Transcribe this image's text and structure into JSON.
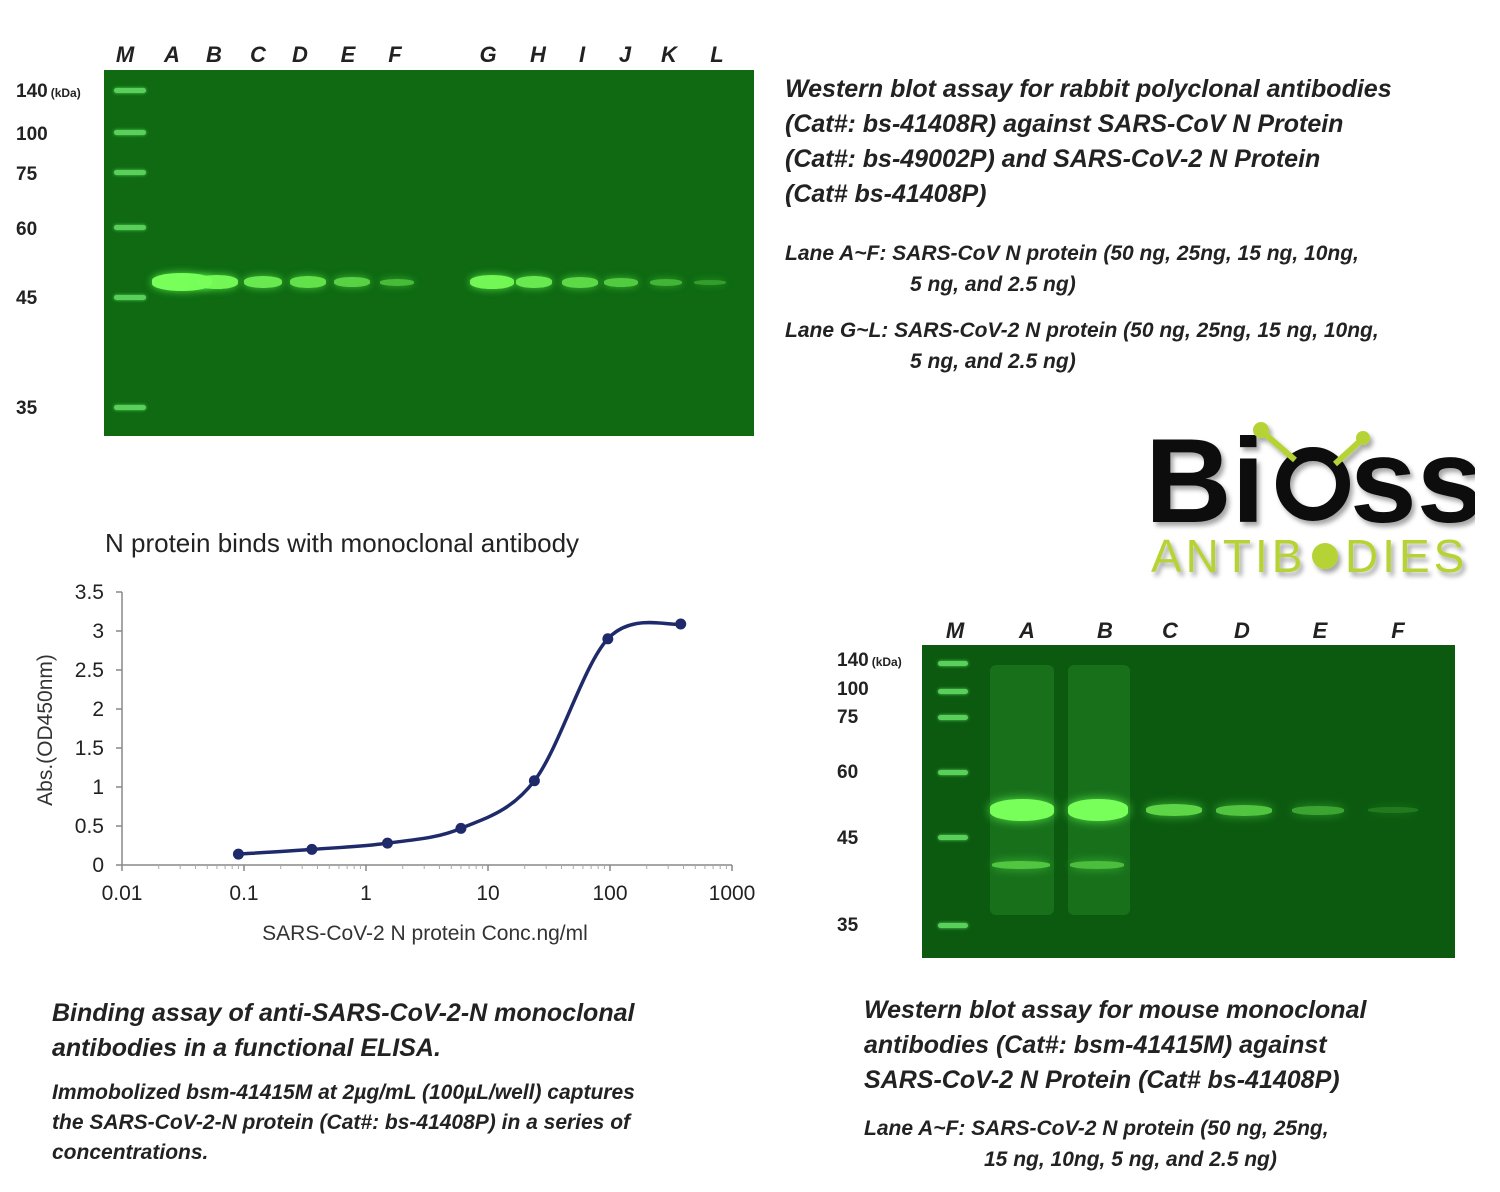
{
  "top_blot": {
    "lanes": [
      "M",
      "A",
      "B",
      "C",
      "D",
      "E",
      "F",
      "G",
      "H",
      "I",
      "J",
      "K",
      "L"
    ],
    "mw_labels": [
      "140",
      "100",
      "75",
      "60",
      "45",
      "35"
    ],
    "mw_unit": "(kDa)",
    "title_lines": [
      "Western blot assay for rabbit polyclonal antibodies",
      "(Cat#: bs-41408R) against SARS-CoV N Protein",
      "(Cat#: bs-49002P) and SARS-CoV-2 N Protein",
      "(Cat# bs-41408P)"
    ],
    "lane_af_line1": "Lane A~F: SARS-CoV N protein (50 ng, 25ng, 15 ng, 10ng,",
    "lane_af_line2": "5 ng, and 2.5 ng)",
    "lane_gl_line1": "Lane G~L: SARS-CoV-2 N protein (50 ng, 25ng, 15 ng, 10ng,",
    "lane_gl_line2": "5 ng, and 2.5 ng)"
  },
  "logo": {
    "text_main": "Bi",
    "text_main2": "ss",
    "text_sub": "ANTIB",
    "text_sub2": "DIES",
    "dark_color": "#111111",
    "accent_color": "#b5d334"
  },
  "bottom_blot": {
    "lanes": [
      "M",
      "A",
      "B",
      "C",
      "D",
      "E",
      "F"
    ],
    "mw_labels": [
      "140",
      "100",
      "75",
      "60",
      "45",
      "35"
    ],
    "mw_unit": "(kDa)",
    "title_lines": [
      "Western blot assay for mouse monoclonal",
      "antibodies (Cat#: bsm-41415M) against",
      "SARS-CoV-2 N Protein (Cat# bs-41408P)"
    ],
    "lane_line1": "Lane A~F: SARS-CoV-2 N protein (50 ng, 25ng,",
    "lane_line2": "15 ng, 10ng, 5 ng, and 2.5 ng)"
  },
  "elisa": {
    "caption_title_lines": [
      "Binding assay of anti-SARS-CoV-2-N monoclonal",
      "antibodies in a functional ELISA."
    ],
    "caption_desc_lines": [
      "Immobolized bsm-41415M at 2µg/mL (100µL/well) captures",
      "the SARS-CoV-2-N protein (Cat#: bs-41408P) in a series of",
      "concentrations."
    ]
  },
  "chart_data": {
    "type": "line",
    "title": "N protein binds with monoclonal antibody",
    "xlabel": "SARS-CoV-2 N protein Conc.ng/ml",
    "ylabel": "Abs.(OD450nm)",
    "x_scale": "log",
    "xlim": [
      0.01,
      1000
    ],
    "ylim": [
      0,
      3.5
    ],
    "x_ticks": [
      "0.01",
      "0.1",
      "1",
      "10",
      "100",
      "1000"
    ],
    "y_ticks": [
      "0",
      "0.5",
      "1",
      "1.5",
      "2",
      "2.5",
      "3",
      "3.5"
    ],
    "grid": false,
    "line_color": "#1f2a6b",
    "series": [
      {
        "x": [
          0.09,
          0.36,
          1.5,
          6,
          24,
          96,
          380
        ],
        "y": [
          0.14,
          0.2,
          0.28,
          0.47,
          1.08,
          2.9,
          3.09
        ]
      }
    ]
  }
}
